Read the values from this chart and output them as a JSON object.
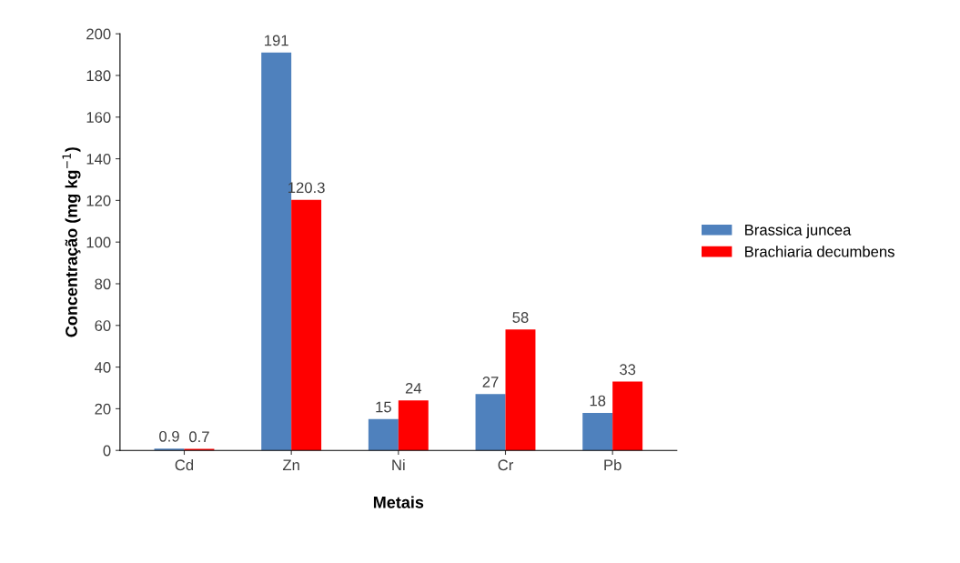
{
  "chart_data": {
    "type": "bar",
    "xlabel": "Metais",
    "ylabel": "Concentração (mg kg$^{−1}$)",
    "categories": [
      "Cd",
      "Zn",
      "Ni",
      "Cr",
      "Pb"
    ],
    "series": [
      {
        "name": "Brassica juncea",
        "color": "#4f81bd",
        "values": [
          0.9,
          191,
          15,
          27,
          18
        ]
      },
      {
        "name": "Brachiaria decumbens",
        "color": "#ff0000",
        "values": [
          0.7,
          120.3,
          24,
          58,
          33
        ]
      }
    ],
    "ylim": [
      0,
      200
    ],
    "yticks": [
      0,
      20,
      40,
      60,
      80,
      100,
      120,
      140,
      160,
      180,
      200
    ],
    "data_labels": true,
    "legend": "right",
    "grid": false
  }
}
